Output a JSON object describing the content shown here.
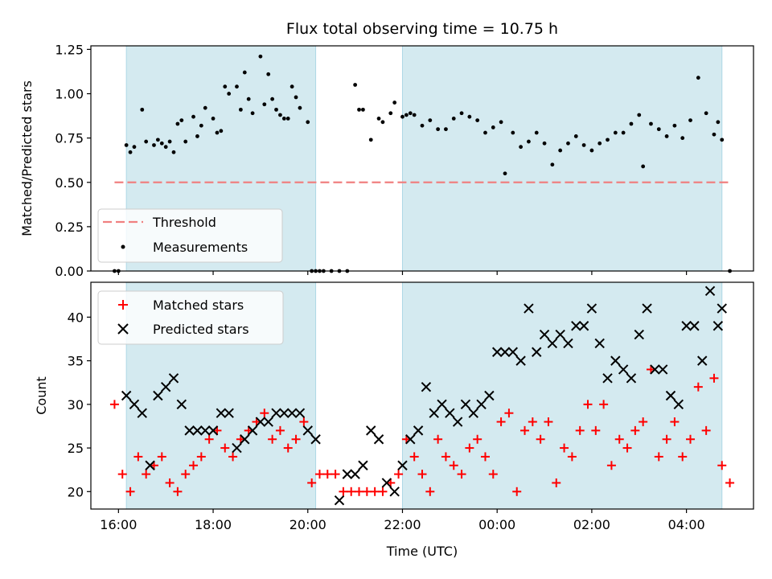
{
  "title": "Flux total observing time = 10.75 h",
  "chart_data": [
    {
      "type": "scatter",
      "ylabel": "Matched/Predicted stars",
      "ylim": [
        0.0,
        1.27
      ],
      "yticks": [
        "0.00",
        "0.25",
        "0.50",
        "0.75",
        "1.00",
        "1.25"
      ],
      "threshold": {
        "name": "Threshold",
        "value": 0.5,
        "color": "#f08080",
        "x_start": "15:55",
        "x_end": "04:55"
      },
      "shaded_intervals": [
        [
          "16:10",
          "20:10"
        ],
        [
          "22:00",
          "04:45"
        ]
      ],
      "shade_color": "#d4eaf0",
      "legend": [
        "Threshold",
        "Measurements"
      ],
      "legend_placement": "lower-left",
      "series": [
        {
          "name": "Measurements",
          "color": "#000000",
          "x": [
            "15:55",
            "16:00",
            "16:10",
            "16:15",
            "16:20",
            "16:30",
            "16:35",
            "16:45",
            "16:50",
            "16:55",
            "17:00",
            "17:05",
            "17:10",
            "17:15",
            "17:20",
            "17:25",
            "17:35",
            "17:40",
            "17:45",
            "17:50",
            "18:00",
            "18:05",
            "18:10",
            "18:15",
            "18:20",
            "18:30",
            "18:35",
            "18:40",
            "18:45",
            "18:50",
            "19:00",
            "19:05",
            "19:10",
            "19:15",
            "19:20",
            "19:25",
            "19:30",
            "19:35",
            "19:40",
            "19:45",
            "19:50",
            "20:00",
            "20:05",
            "20:10",
            "20:15",
            "20:20",
            "20:30",
            "20:40",
            "20:50",
            "21:00",
            "21:05",
            "21:10",
            "21:20",
            "21:30",
            "21:35",
            "21:45",
            "21:50",
            "22:00",
            "22:05",
            "22:10",
            "22:15",
            "22:25",
            "22:35",
            "22:45",
            "22:55",
            "23:05",
            "23:15",
            "23:25",
            "23:35",
            "23:45",
            "23:55",
            "00:05",
            "00:10",
            "00:20",
            "00:30",
            "00:40",
            "00:50",
            "01:00",
            "01:10",
            "01:20",
            "01:30",
            "01:40",
            "01:50",
            "02:00",
            "02:10",
            "02:20",
            "02:30",
            "02:40",
            "02:50",
            "03:00",
            "03:05",
            "03:15",
            "03:25",
            "03:35",
            "03:45",
            "03:55",
            "04:05",
            "04:15",
            "04:25",
            "04:35",
            "04:40",
            "04:45",
            "04:55"
          ],
          "y": [
            0.0,
            0.0,
            0.71,
            0.67,
            0.7,
            0.91,
            0.73,
            0.71,
            0.74,
            0.72,
            0.7,
            0.73,
            0.67,
            0.83,
            0.85,
            0.73,
            0.87,
            0.76,
            0.82,
            0.92,
            0.86,
            0.78,
            0.79,
            1.04,
            1.0,
            1.04,
            0.91,
            1.12,
            0.97,
            0.89,
            1.21,
            0.94,
            1.11,
            0.97,
            0.91,
            0.88,
            0.86,
            0.86,
            1.04,
            0.98,
            0.92,
            0.84,
            0.0,
            0.0,
            0.0,
            0.0,
            0.0,
            0.0,
            0.0,
            1.05,
            0.91,
            0.91,
            0.74,
            0.86,
            0.84,
            0.89,
            0.95,
            0.87,
            0.88,
            0.89,
            0.88,
            0.82,
            0.85,
            0.8,
            0.8,
            0.86,
            0.89,
            0.87,
            0.85,
            0.78,
            0.81,
            0.84,
            0.55,
            0.78,
            0.7,
            0.73,
            0.78,
            0.72,
            0.6,
            0.68,
            0.72,
            0.76,
            0.71,
            0.68,
            0.72,
            0.74,
            0.78,
            0.78,
            0.83,
            0.88,
            0.59,
            0.83,
            0.8,
            0.76,
            0.82,
            0.75,
            0.85,
            1.09,
            0.89,
            0.77,
            0.84,
            0.74,
            0.0
          ]
        }
      ]
    },
    {
      "type": "scatter",
      "xlabel": "Time (UTC)",
      "ylabel": "Count",
      "ylim": [
        18.0,
        44.0
      ],
      "yticks": [
        "20",
        "25",
        "30",
        "35",
        "40"
      ],
      "xticks": [
        "16:00",
        "18:00",
        "20:00",
        "22:00",
        "00:00",
        "02:00",
        "04:00"
      ],
      "xrange": [
        "15:25",
        "05:25"
      ],
      "shaded_intervals": [
        [
          "16:10",
          "20:10"
        ],
        [
          "22:00",
          "04:45"
        ]
      ],
      "shade_color": "#d4eaf0",
      "legend": [
        "Matched stars",
        "Predicted stars"
      ],
      "legend_placement": "upper-left",
      "series": [
        {
          "name": "Matched stars",
          "marker": "plus",
          "color": "#ff0000",
          "x": [
            "15:55",
            "16:05",
            "16:15",
            "16:25",
            "16:35",
            "16:45",
            "16:55",
            "17:05",
            "17:15",
            "17:25",
            "17:35",
            "17:45",
            "17:55",
            "18:05",
            "18:15",
            "18:25",
            "18:35",
            "18:45",
            "18:55",
            "19:05",
            "19:15",
            "19:25",
            "19:35",
            "19:45",
            "19:55",
            "20:05",
            "20:15",
            "20:25",
            "20:35",
            "20:45",
            "20:55",
            "21:05",
            "21:15",
            "21:25",
            "21:35",
            "21:45",
            "21:55",
            "22:05",
            "22:15",
            "22:25",
            "22:35",
            "22:45",
            "22:55",
            "23:05",
            "23:15",
            "23:25",
            "23:35",
            "23:45",
            "23:55",
            "00:05",
            "00:15",
            "00:25",
            "00:35",
            "00:45",
            "00:55",
            "01:05",
            "01:15",
            "01:25",
            "01:35",
            "01:45",
            "01:55",
            "02:05",
            "02:15",
            "02:25",
            "02:35",
            "02:45",
            "02:55",
            "03:05",
            "03:15",
            "03:25",
            "03:35",
            "03:45",
            "03:55",
            "04:05",
            "04:15",
            "04:25",
            "04:35",
            "04:45",
            "04:55"
          ],
          "y": [
            30,
            22,
            20,
            24,
            22,
            23,
            24,
            21,
            20,
            22,
            23,
            24,
            26,
            27,
            25,
            24,
            26,
            27,
            28,
            29,
            26,
            27,
            25,
            26,
            28,
            21,
            22,
            22,
            22,
            20,
            20,
            20,
            20,
            20,
            20,
            21,
            22,
            26,
            24,
            22,
            20,
            26,
            24,
            23,
            22,
            25,
            26,
            24,
            22,
            28,
            29,
            20,
            27,
            28,
            26,
            28,
            21,
            25,
            24,
            27,
            30,
            27,
            30,
            23,
            26,
            25,
            27,
            28,
            34,
            24,
            26,
            28,
            24,
            26,
            32,
            27,
            33,
            23,
            21
          ]
        },
        {
          "name": "Predicted stars",
          "marker": "x",
          "color": "#000000",
          "x": [
            "16:10",
            "16:20",
            "16:30",
            "16:40",
            "16:50",
            "17:00",
            "17:10",
            "17:20",
            "17:30",
            "17:40",
            "17:50",
            "18:00",
            "18:10",
            "18:20",
            "18:30",
            "18:40",
            "18:50",
            "19:00",
            "19:10",
            "19:20",
            "19:30",
            "19:40",
            "19:50",
            "20:00",
            "20:10",
            "20:40",
            "20:50",
            "21:00",
            "21:10",
            "21:20",
            "21:30",
            "21:40",
            "21:50",
            "22:00",
            "22:10",
            "22:20",
            "22:30",
            "22:40",
            "22:50",
            "23:00",
            "23:10",
            "23:20",
            "23:30",
            "23:40",
            "23:50",
            "00:00",
            "00:10",
            "00:20",
            "00:30",
            "00:40",
            "00:50",
            "01:00",
            "01:10",
            "01:20",
            "01:30",
            "01:40",
            "01:50",
            "02:00",
            "02:10",
            "02:20",
            "02:30",
            "02:40",
            "02:50",
            "03:00",
            "03:10",
            "03:20",
            "03:30",
            "03:40",
            "03:50",
            "04:00",
            "04:10",
            "04:20",
            "04:30",
            "04:40",
            "04:45"
          ],
          "y": [
            31,
            30,
            29,
            23,
            31,
            32,
            33,
            30,
            27,
            27,
            27,
            27,
            29,
            29,
            25,
            26,
            27,
            28,
            28,
            29,
            29,
            29,
            29,
            27,
            26,
            19,
            22,
            22,
            23,
            27,
            26,
            21,
            20,
            23,
            26,
            27,
            32,
            29,
            30,
            29,
            28,
            30,
            29,
            30,
            31,
            36,
            36,
            36,
            35,
            41,
            36,
            38,
            37,
            38,
            37,
            39,
            39,
            41,
            37,
            33,
            35,
            34,
            33,
            38,
            41,
            34,
            34,
            31,
            30,
            39,
            39,
            35,
            43,
            39,
            41
          ]
        }
      ]
    }
  ]
}
